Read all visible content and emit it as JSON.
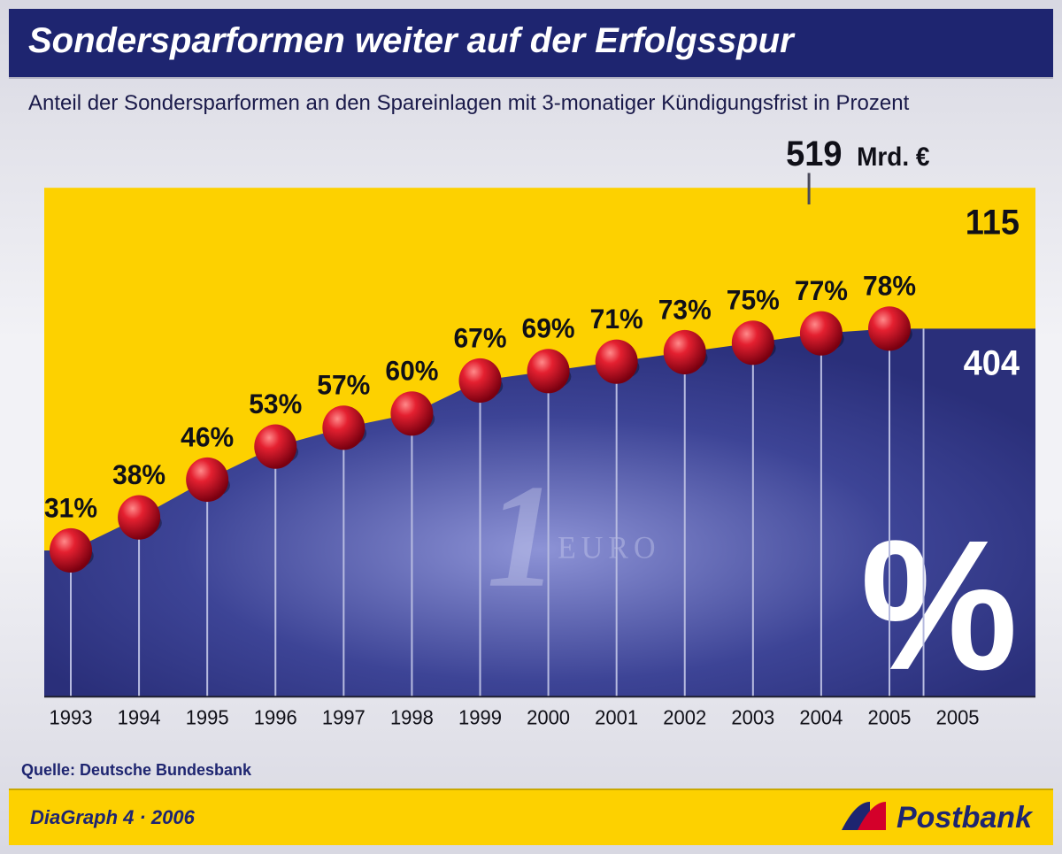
{
  "header": {
    "title": "Sondersparformen weiter auf der Erfolgsspur"
  },
  "subtitle": "Anteil der Sondersparformen an den Spareinlagen mit 3-monatiger Kündigungsfrist in Prozent",
  "chart": {
    "type": "area-with-markers",
    "background_top": "#fdd100",
    "background_glow_center": "#8d93d6",
    "background_bottom": "#2a2f7a",
    "marker_fill": "#e42030",
    "marker_highlight": "#ff8a8a",
    "marker_shadow": "#7a0010",
    "marker_radius": 24,
    "stem_color": "#b7bbe0",
    "stem_width": 2,
    "value_label_color": "#101018",
    "value_label_fontsize": 30,
    "value_label_weight": "bold",
    "year_label_color": "#101018",
    "year_label_fontsize": 22,
    "y_domain": [
      0,
      100
    ],
    "years": [
      "1993",
      "1994",
      "1995",
      "1996",
      "1997",
      "1998",
      "1999",
      "2000",
      "2001",
      "2002",
      "2003",
      "2004",
      "2005"
    ],
    "values": [
      31,
      38,
      46,
      53,
      57,
      60,
      67,
      69,
      71,
      73,
      75,
      77,
      78
    ],
    "extra_x_label": "2005",
    "callout": {
      "total_label": "519",
      "total_suffix": "Mrd. €",
      "upper_value": "115",
      "lower_value": "404",
      "total_color": "#101018",
      "upper_color": "#101018",
      "lower_color": "#ffffff",
      "fontsize_total": 38,
      "fontsize_split": 38,
      "tick_color": "#4a4a5a"
    },
    "watermark": {
      "text_1": "1",
      "text_euro": "EURO",
      "percent_symbol": "%",
      "color": "#d9dcf5",
      "percent_color": "#ffffff"
    }
  },
  "source": "Quelle: Deutsche Bundesbank",
  "footer": {
    "left": "DiaGraph 4 · 2006",
    "brand": "Postbank",
    "brand_color": "#1e2570",
    "footer_bg": "#fdd100",
    "swoosh_blue": "#1e2570",
    "swoosh_red": "#d4002a"
  }
}
